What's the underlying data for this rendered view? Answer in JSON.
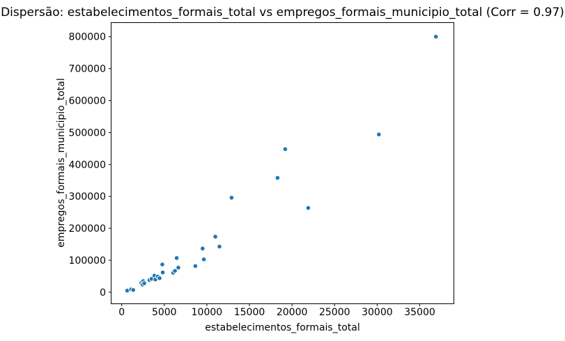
{
  "figure": {
    "background": "#ffffff",
    "text_color": "#000000",
    "spine_color": "#000000"
  },
  "chart_data": {
    "type": "scatter",
    "title": "Dispersão: estabelecimentos_formais_total vs empregos_formais_municipio_total (Corr = 0.97)",
    "xlabel": "estabelecimentos_formais_total",
    "ylabel": "empregos_formais_municipio_total",
    "correlation": 0.97,
    "grid": false,
    "legend": false,
    "xlim": [
      -1200,
      39050
    ],
    "ylim": [
      -35000,
      843000
    ],
    "xticks": [
      0,
      5000,
      10000,
      15000,
      20000,
      25000,
      30000,
      35000
    ],
    "yticks": [
      0,
      100000,
      200000,
      300000,
      400000,
      500000,
      600000,
      700000,
      800000
    ],
    "marker": {
      "color": "#1f77b4",
      "edge_color": "#ffffff"
    },
    "points": [
      [
        650,
        5000
      ],
      [
        1100,
        9000
      ],
      [
        1350,
        7000
      ],
      [
        2300,
        30000
      ],
      [
        2450,
        24000
      ],
      [
        2520,
        35000
      ],
      [
        2650,
        28000
      ],
      [
        3250,
        38000
      ],
      [
        3500,
        42000
      ],
      [
        3850,
        52000
      ],
      [
        3950,
        40000
      ],
      [
        4250,
        49000
      ],
      [
        4450,
        44000
      ],
      [
        4770,
        87000
      ],
      [
        4820,
        62000
      ],
      [
        6050,
        61000
      ],
      [
        6250,
        67000
      ],
      [
        6460,
        107000
      ],
      [
        6650,
        77000
      ],
      [
        8650,
        82000
      ],
      [
        9500,
        137000
      ],
      [
        9650,
        103000
      ],
      [
        11000,
        174000
      ],
      [
        11480,
        143000
      ],
      [
        12900,
        296000
      ],
      [
        18300,
        358000
      ],
      [
        19200,
        448000
      ],
      [
        21900,
        264000
      ],
      [
        30200,
        494000
      ],
      [
        36900,
        800000
      ]
    ]
  }
}
